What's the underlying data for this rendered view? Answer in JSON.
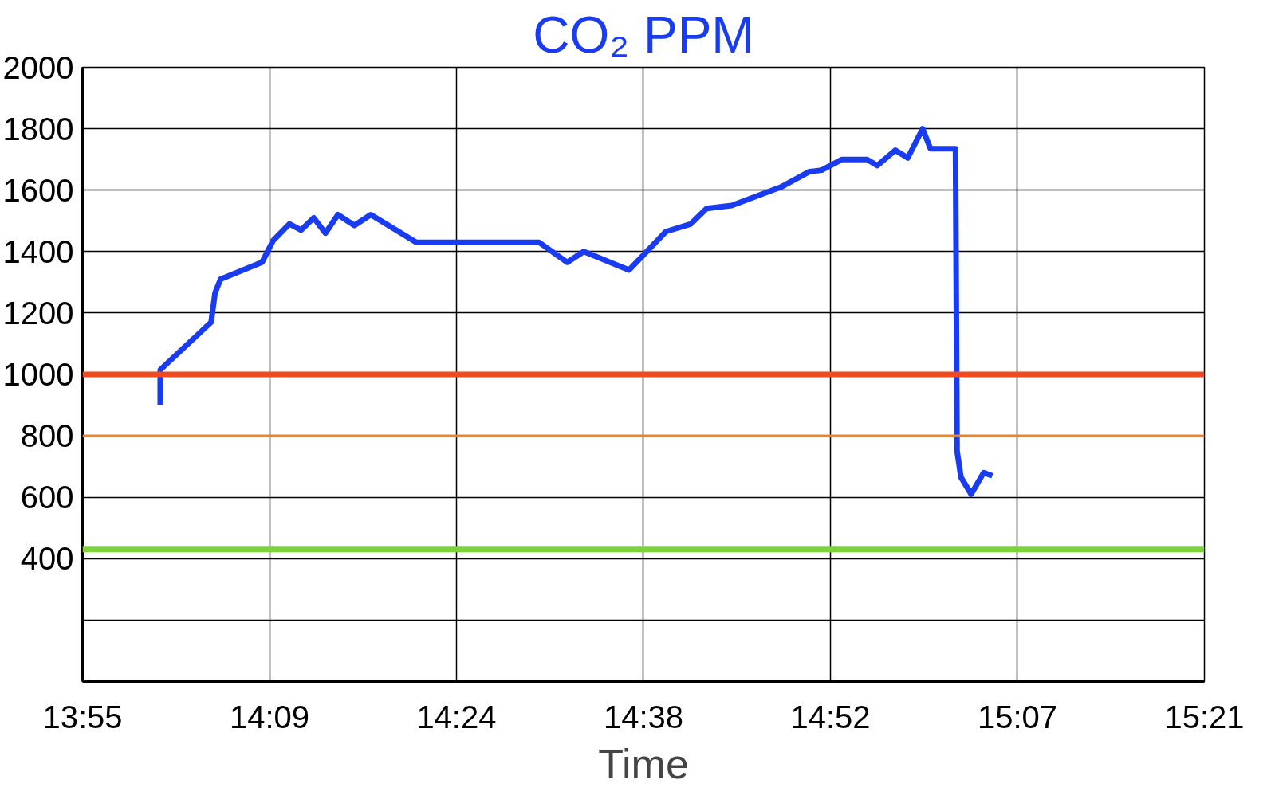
{
  "chart_data": {
    "type": "line",
    "title": "CO₂ PPM",
    "xlabel": "Time",
    "xlim": [
      13.9167,
      15.35
    ],
    "xticks": [
      {
        "value": 13.9167,
        "label": "13:55"
      },
      {
        "value": 14.1556,
        "label": "14:09"
      },
      {
        "value": 14.3944,
        "label": "14:24"
      },
      {
        "value": 14.6333,
        "label": "14:38"
      },
      {
        "value": 14.8722,
        "label": "14:52"
      },
      {
        "value": 15.1111,
        "label": "15:07"
      },
      {
        "value": 15.35,
        "label": "15:21"
      }
    ],
    "ylim": [
      0,
      2000
    ],
    "yticks": [
      {
        "value": 200,
        "label": null
      },
      400,
      600,
      800,
      1000,
      1200,
      1400,
      1600,
      1800,
      2000
    ],
    "grid": true,
    "marker": "none",
    "line_style": "solid",
    "series": [
      {
        "color": "#1a3cf0",
        "x": [
          14.016,
          14.016,
          14.081,
          14.086,
          14.093,
          14.146,
          14.16,
          14.181,
          14.196,
          14.212,
          14.227,
          14.243,
          14.264,
          14.285,
          14.343,
          14.5,
          14.536,
          14.557,
          14.615,
          14.662,
          14.694,
          14.714,
          14.746,
          14.809,
          14.845,
          14.861,
          14.887,
          14.919,
          14.932,
          14.955,
          14.971,
          14.99,
          15.0,
          15.032,
          15.034,
          15.039,
          15.052,
          15.068,
          15.079
        ],
        "values": [
          900,
          1015,
          1170,
          1265,
          1310,
          1365,
          1435,
          1490,
          1470,
          1510,
          1460,
          1520,
          1485,
          1520,
          1430,
          1430,
          1365,
          1400,
          1340,
          1465,
          1490,
          1540,
          1550,
          1610,
          1660,
          1665,
          1700,
          1700,
          1680,
          1730,
          1705,
          1800,
          1735,
          1735,
          750,
          665,
          610,
          680,
          670
        ]
      }
    ],
    "ref_lines": [
      {
        "axis": "y",
        "value": 1000,
        "color": "#f04a1e"
      },
      {
        "axis": "y",
        "value": 800,
        "color": "#f0822e"
      },
      {
        "axis": "y",
        "value": 430,
        "color": "#7ed23c"
      }
    ]
  }
}
